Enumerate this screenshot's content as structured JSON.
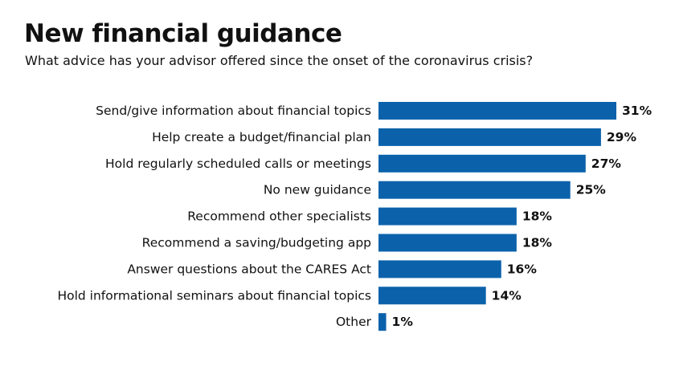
{
  "colors": {
    "bar": "#0b62ab",
    "text": "#111111",
    "background": "#ffffff"
  },
  "chart_data": {
    "type": "bar",
    "orientation": "horizontal",
    "title": "New financial guidance",
    "subtitle": "What advice has your advisor offered since the onset of the coronavirus crisis?",
    "categories": [
      "Send/give information about financial topics",
      "Help create a budget/financial plan",
      "Hold regularly scheduled calls or meetings",
      "No new guidance",
      "Recommend other specialists",
      "Recommend a saving/budgeting app",
      "Answer questions about the CARES Act",
      "Hold informational seminars about financial topics",
      "Other"
    ],
    "values": [
      31,
      29,
      27,
      25,
      18,
      18,
      16,
      14,
      1
    ],
    "value_labels": [
      "31%",
      "29%",
      "27%",
      "25%",
      "18%",
      "18%",
      "16%",
      "14%",
      "1%"
    ],
    "unit": "%",
    "xlim": [
      0,
      31
    ],
    "grid": false,
    "legend": "none"
  }
}
